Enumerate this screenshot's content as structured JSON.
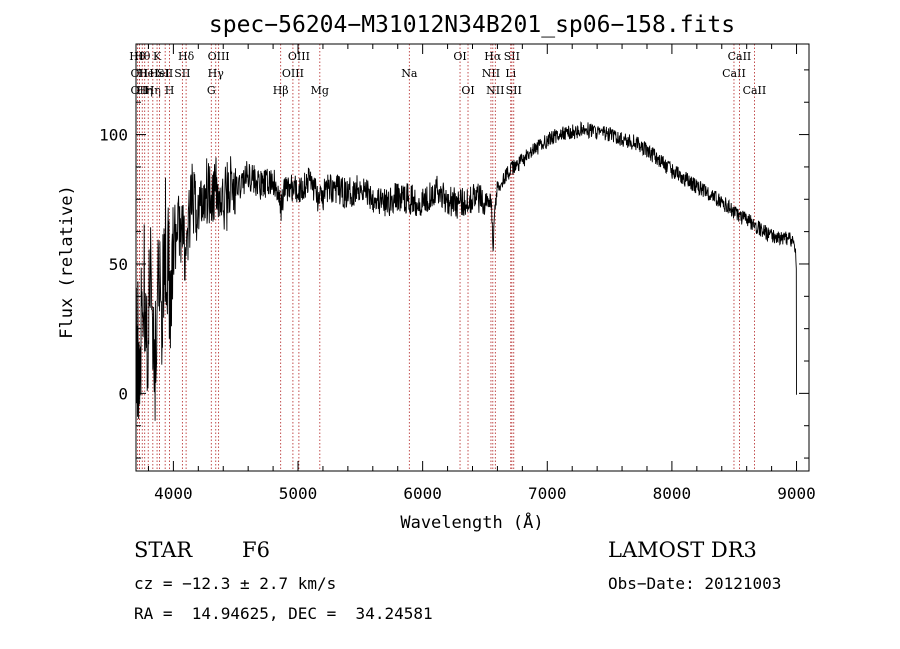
{
  "chart_data": {
    "type": "line",
    "title": "spec−56204−M31012N34B201_sp06−158.fits",
    "xlabel": "Wavelength (Å)",
    "ylabel": "Flux (relative)",
    "xlim": [
      3700,
      9100
    ],
    "ylim": [
      -30,
      135
    ],
    "xticks": [
      4000,
      5000,
      6000,
      7000,
      8000,
      9000
    ],
    "yticks": [
      0,
      50,
      100
    ],
    "series": [
      {
        "name": "flux",
        "x": [
          3700,
          3730,
          3760,
          3790,
          3820,
          3850,
          3880,
          3910,
          3940,
          3970,
          4000,
          4050,
          4100,
          4150,
          4200,
          4250,
          4300,
          4350,
          4400,
          4450,
          4500,
          4600,
          4700,
          4800,
          4861,
          4900,
          5000,
          5100,
          5175,
          5250,
          5400,
          5500,
          5600,
          5700,
          5800,
          5893,
          6000,
          6100,
          6200,
          6300,
          6400,
          6500,
          6560,
          6563,
          6600,
          6700,
          6800,
          6900,
          7000,
          7100,
          7200,
          7300,
          7400,
          7500,
          7600,
          7700,
          7800,
          7900,
          8000,
          8100,
          8200,
          8300,
          8400,
          8500,
          8550,
          8600,
          8700,
          8800,
          8900,
          8980,
          9000
        ],
        "y": [
          30,
          15,
          45,
          20,
          48,
          10,
          55,
          35,
          60,
          40,
          58,
          66,
          55,
          75,
          70,
          78,
          80,
          77,
          72,
          80,
          78,
          85,
          80,
          82,
          72,
          80,
          78,
          83,
          74,
          80,
          77,
          80,
          76,
          73,
          76,
          75,
          74,
          79,
          75,
          73,
          76,
          75,
          74,
          62,
          80,
          86,
          90,
          94,
          98,
          100,
          101,
          102,
          101,
          100,
          98,
          97,
          94,
          90,
          86,
          83,
          80,
          77,
          74,
          70,
          68,
          67,
          64,
          61,
          60,
          59,
          50
        ]
      }
    ],
    "lines": [
      {
        "w": 3711,
        "label": "Hθ",
        "row": 0
      },
      {
        "w": 3727,
        "label": "OII",
        "row": 1
      },
      {
        "w": 3727,
        "label": "OII",
        "row": 2
      },
      {
        "w": 3750,
        "label": "Hθ",
        "row": 0
      },
      {
        "w": 3770,
        "label": "Hη",
        "row": 2
      },
      {
        "w": 3798,
        "label": "HeI",
        "row": 1
      },
      {
        "w": 3835,
        "label": "Hη",
        "row": 2
      },
      {
        "w": 3869,
        "label": "K",
        "row": 0
      },
      {
        "w": 3889,
        "label": "HeI",
        "row": 1
      },
      {
        "w": 3934,
        "label": "SII",
        "row": 1
      },
      {
        "w": 3969,
        "label": "H",
        "row": 2
      },
      {
        "w": 4072,
        "label": "SII",
        "row": 1
      },
      {
        "w": 4102,
        "label": "Hδ",
        "row": 0
      },
      {
        "w": 4304,
        "label": "G",
        "row": 2
      },
      {
        "w": 4340,
        "label": "Hγ",
        "row": 1
      },
      {
        "w": 4363,
        "label": "OIII",
        "row": 0
      },
      {
        "w": 4861,
        "label": "Hβ",
        "row": 2
      },
      {
        "w": 4959,
        "label": "OIII",
        "row": 1
      },
      {
        "w": 5007,
        "label": "OIII",
        "row": 0
      },
      {
        "w": 5175,
        "label": "Mg",
        "row": 2
      },
      {
        "w": 5893,
        "label": "Na",
        "row": 1
      },
      {
        "w": 6300,
        "label": "OI",
        "row": 0
      },
      {
        "w": 6364,
        "label": "OI",
        "row": 2
      },
      {
        "w": 6548,
        "label": "NII",
        "row": 1
      },
      {
        "w": 6563,
        "label": "Hα",
        "row": 0
      },
      {
        "w": 6583,
        "label": "NII",
        "row": 2
      },
      {
        "w": 6707,
        "label": "Li",
        "row": 1
      },
      {
        "w": 6716,
        "label": "SII",
        "row": 0
      },
      {
        "w": 6731,
        "label": "SII",
        "row": 2
      },
      {
        "w": 8498,
        "label": "CaII",
        "row": 1
      },
      {
        "w": 8542,
        "label": "CaII",
        "row": 0
      },
      {
        "w": 8662,
        "label": "CaII",
        "row": 2
      }
    ]
  },
  "info": {
    "class": "STAR",
    "subclass": "F6",
    "survey": "LAMOST DR3",
    "cz": "cz = −12.3 ± 2.7 km/s",
    "obs_date": "Obs−Date: 20121003",
    "coords": "RA =  14.94625, DEC =  34.24581"
  }
}
